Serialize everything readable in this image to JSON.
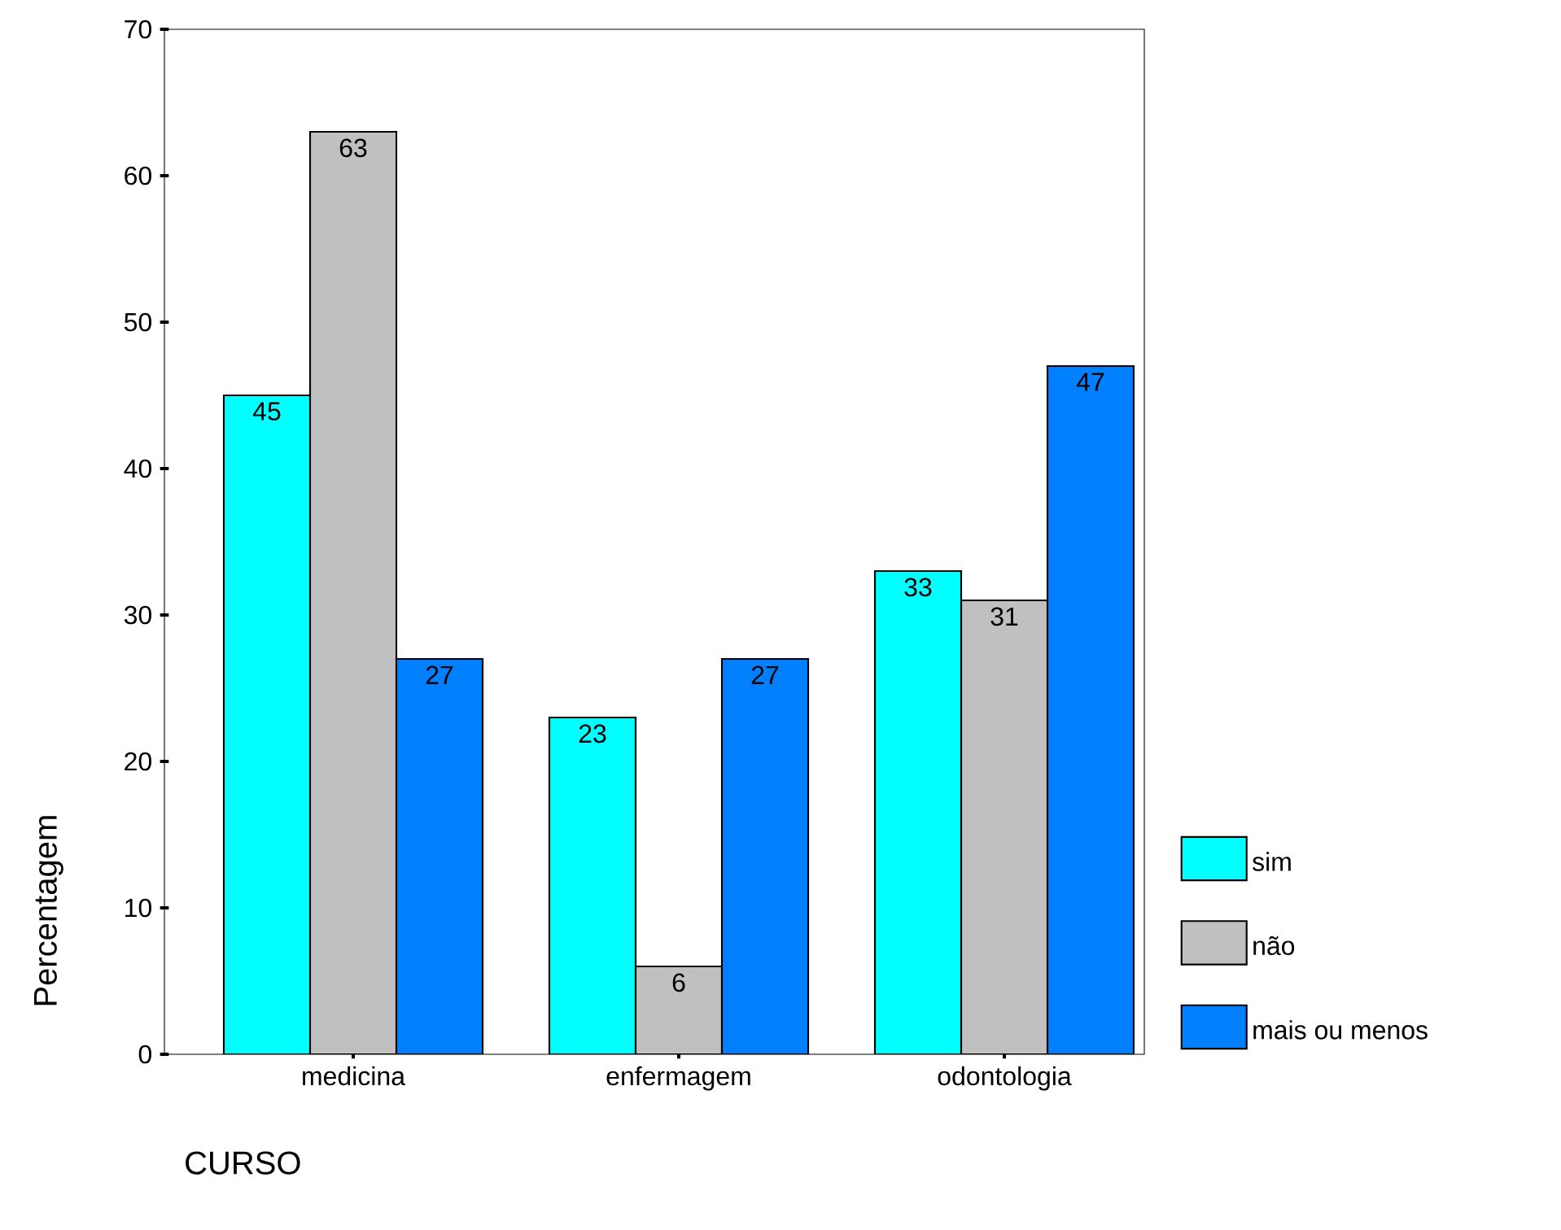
{
  "chart_data": {
    "type": "bar",
    "xlabel": "CURSO",
    "ylabel": "Percentagem",
    "categories": [
      "medicina",
      "enfermagem",
      "odontologia"
    ],
    "series": [
      {
        "name": "sim",
        "color": "#00ffff",
        "values": [
          45,
          23,
          33
        ]
      },
      {
        "name": "não",
        "color": "#c0c0c0",
        "values": [
          63,
          6,
          31
        ]
      },
      {
        "name": "mais ou menos",
        "color": "#0080ff",
        "values": [
          27,
          27,
          47
        ]
      }
    ],
    "ylim": [
      0,
      70
    ],
    "yticks": [
      0,
      10,
      20,
      30,
      40,
      50,
      60,
      70
    ],
    "grid": false,
    "legend": "right",
    "data_labels": true
  }
}
